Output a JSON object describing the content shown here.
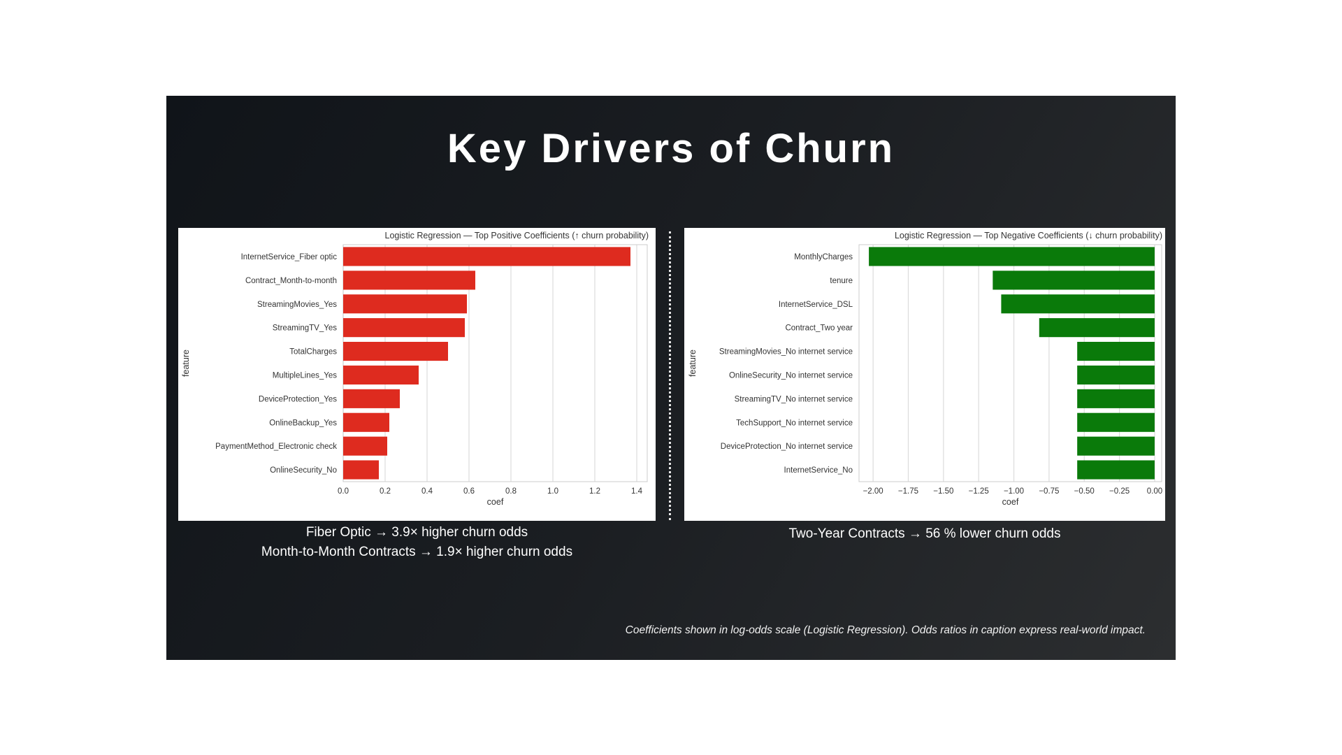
{
  "slide": {
    "title": "Key Drivers of Churn",
    "left_caption_lines": [
      "Fiber Optic → 3.9× higher churn odds",
      "Month-to-Month Contracts → 1.9× higher churn odds"
    ],
    "right_caption_lines": [
      "Two-Year Contracts → 56 % lower churn odds"
    ],
    "footnote": "Coefficients shown in log-odds scale (Logistic Regression). Odds ratios in caption express real-world impact.",
    "colors": {
      "positive_bar": "#de2b1f",
      "negative_bar": "#0a7a0a",
      "background": "#1b1e22"
    }
  },
  "chart_data": [
    {
      "type": "bar",
      "orientation": "horizontal",
      "title": "Logistic Regression — Top Positive Coefficients (↑ churn probability)",
      "xlabel": "coef",
      "ylabel": "feature",
      "xlim": [
        0,
        1.45
      ],
      "xticks": [
        "0.0",
        "0.2",
        "0.4",
        "0.6",
        "0.8",
        "1.0",
        "1.2",
        "1.4"
      ],
      "xtick_values": [
        0,
        0.2,
        0.4,
        0.6,
        0.8,
        1.0,
        1.2,
        1.4
      ],
      "grid": "vertical",
      "color": "#de2b1f",
      "categories": [
        "InternetService_Fiber optic",
        "Contract_Month-to-month",
        "StreamingMovies_Yes",
        "StreamingTV_Yes",
        "TotalCharges",
        "MultipleLines_Yes",
        "DeviceProtection_Yes",
        "OnlineBackup_Yes",
        "PaymentMethod_Electronic check",
        "OnlineSecurity_No"
      ],
      "values": [
        1.37,
        0.63,
        0.59,
        0.58,
        0.5,
        0.36,
        0.27,
        0.22,
        0.21,
        0.17
      ]
    },
    {
      "type": "bar",
      "orientation": "horizontal",
      "title": "Logistic Regression — Top Negative Coefficients (↓ churn probability)",
      "xlabel": "coef",
      "ylabel": "feature",
      "xlim": [
        -2.1,
        0.05
      ],
      "xticks": [
        "−2.00",
        "−1.75",
        "−1.50",
        "−1.25",
        "−1.00",
        "−0.75",
        "−0.50",
        "−0.25",
        "0.00"
      ],
      "xtick_values": [
        -2.0,
        -1.75,
        -1.5,
        -1.25,
        -1.0,
        -0.75,
        -0.5,
        -0.25,
        0.0
      ],
      "grid": "vertical",
      "color": "#0a7a0a",
      "categories": [
        "MonthlyCharges",
        "tenure",
        "InternetService_DSL",
        "Contract_Two year",
        "StreamingMovies_No internet service",
        "OnlineSecurity_No internet service",
        "StreamingTV_No internet service",
        "TechSupport_No internet service",
        "DeviceProtection_No internet service",
        "InternetService_No"
      ],
      "values": [
        -2.03,
        -1.15,
        -1.09,
        -0.82,
        -0.55,
        -0.55,
        -0.55,
        -0.55,
        -0.55,
        -0.55
      ]
    }
  ]
}
